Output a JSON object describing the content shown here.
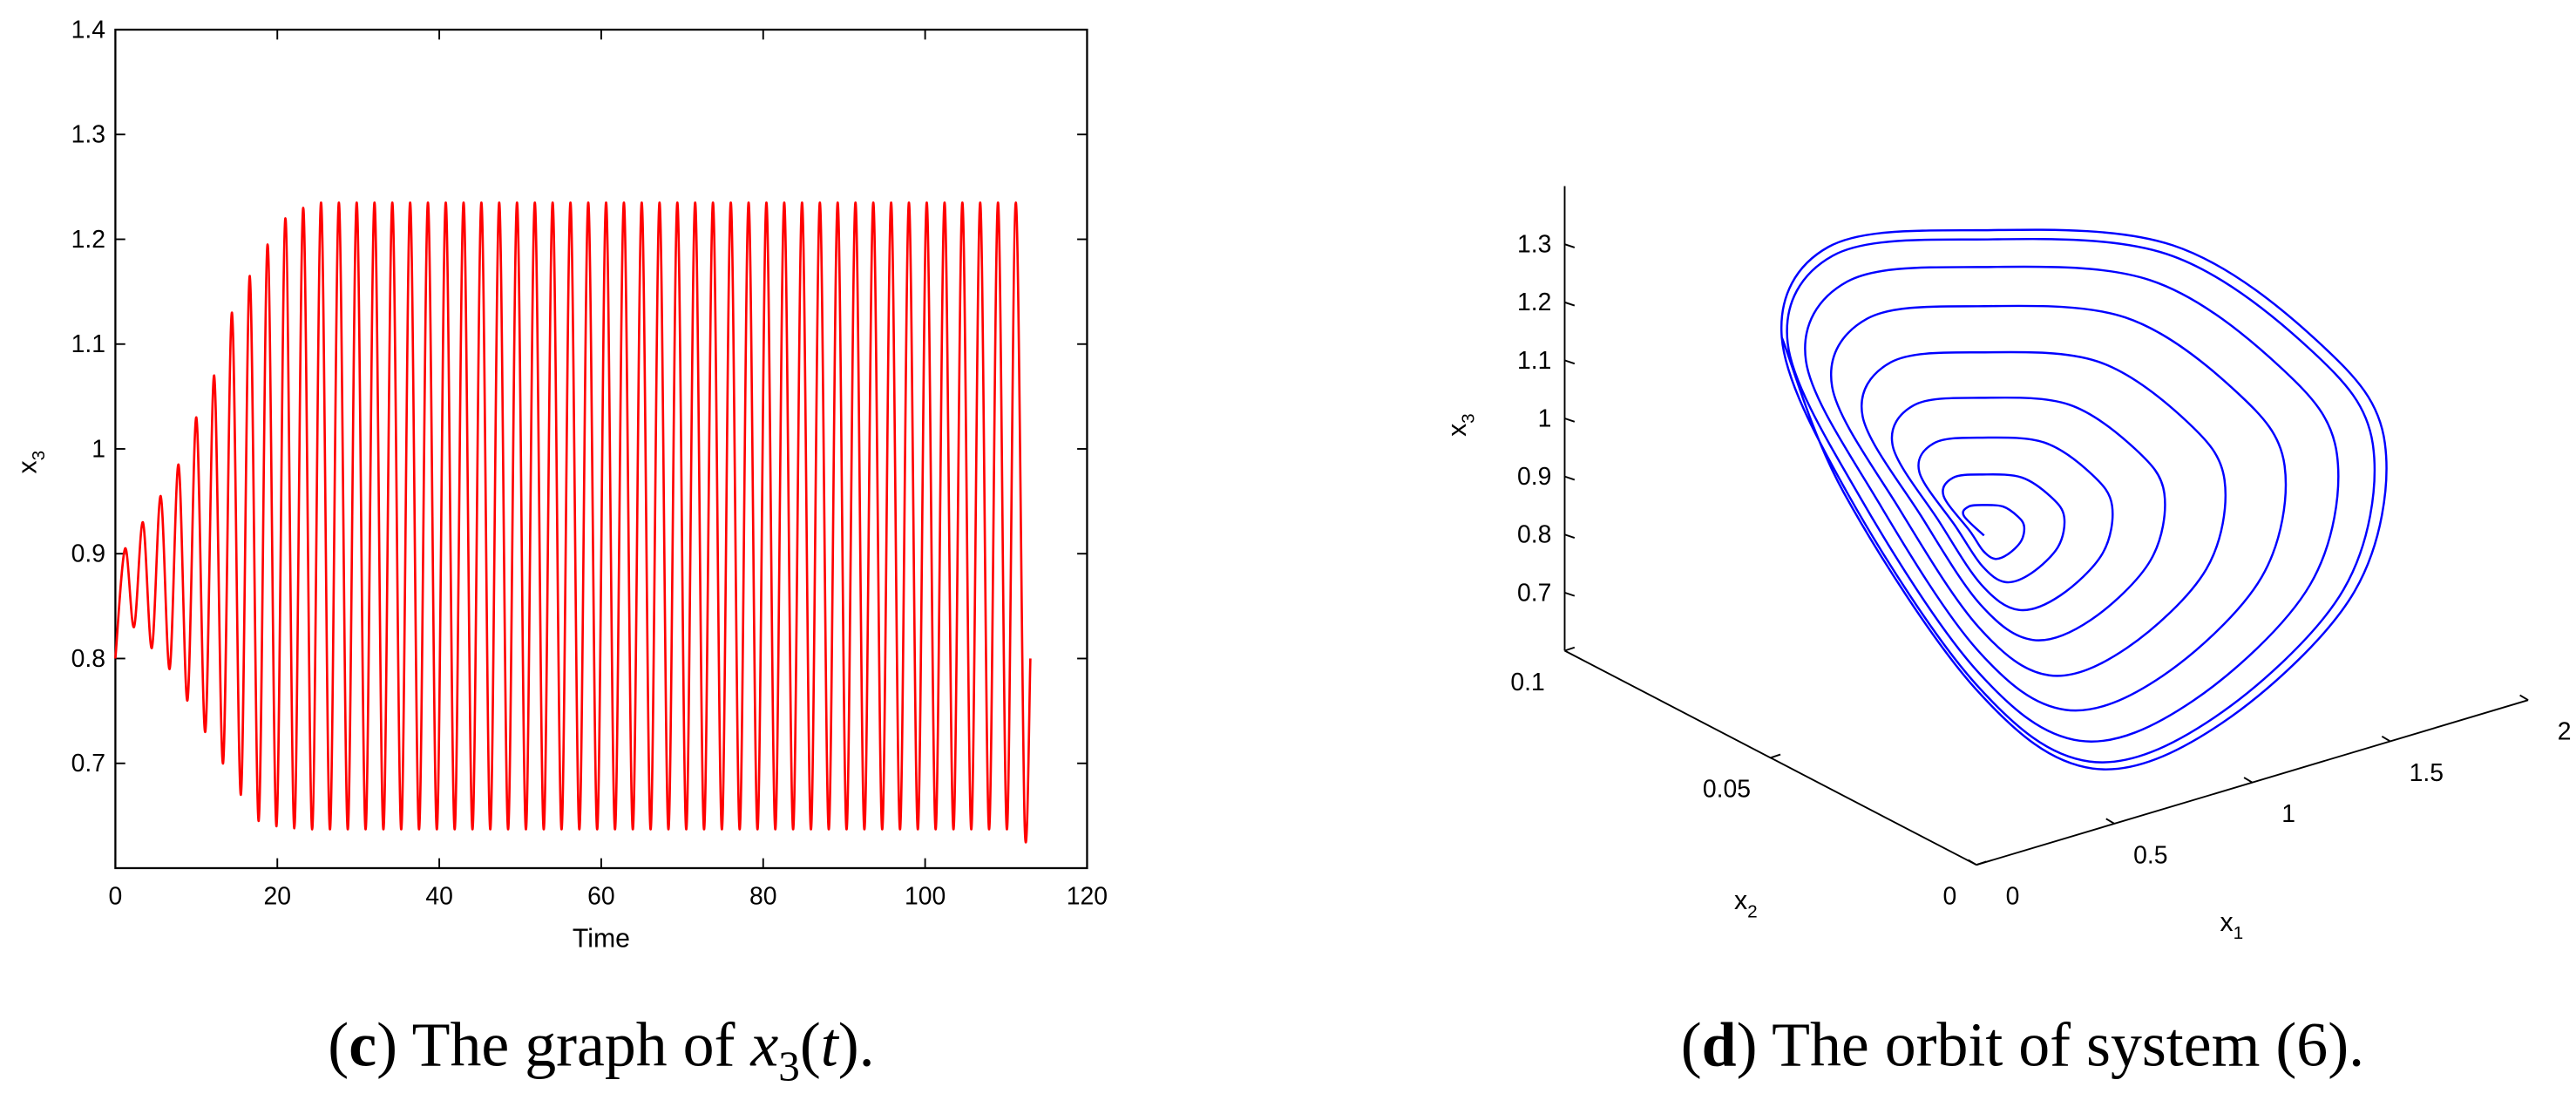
{
  "chart_data": [
    {
      "type": "line",
      "xlabel": "Time",
      "ylabel": [
        "x",
        "3"
      ],
      "caption": [
        {
          "text": "(",
          "style": "normal"
        },
        {
          "text": "c",
          "style": "bold"
        },
        {
          "text": ") The graph of ",
          "style": "normal"
        },
        {
          "text": "x",
          "style": "italic"
        },
        {
          "text": "3",
          "style": "sub"
        },
        {
          "text": "(",
          "style": "normal"
        },
        {
          "text": "t",
          "style": "italic"
        },
        {
          "text": ").",
          "style": "normal"
        }
      ],
      "xlim": [
        0,
        120
      ],
      "xticks": [
        0,
        20,
        40,
        60,
        80,
        100,
        120
      ],
      "ylim": [
        0.6,
        1.4
      ],
      "yticks": [
        0.7,
        0.8,
        0.9,
        1,
        1.1,
        1.2,
        1.3,
        1.4
      ],
      "grid": false,
      "series": [
        {
          "color": "#ff0000",
          "x": [
            0,
            1.2,
            2.3,
            3.4,
            4.5,
            5.6,
            6.7,
            7.8,
            8.9,
            10,
            11.1,
            12.2,
            13.3,
            14.4,
            15.5,
            16.6,
            17.7,
            18.8,
            19.9,
            21,
            22.1,
            23.2,
            24.3,
            25.4,
            26.5,
            27.6,
            28.7,
            29.8,
            30.9,
            32,
            33.1,
            34.2,
            35.3,
            36.4,
            37.5,
            38.6,
            39.7,
            40.8,
            41.9,
            43,
            44.1,
            45.2,
            46.3,
            47.4,
            48.5,
            49.6,
            50.7,
            51.8,
            52.9,
            54,
            55.1,
            56.2,
            57.3,
            58.4,
            59.5,
            60.6,
            61.7,
            62.8,
            63.9,
            65,
            66.1,
            67.2,
            68.3,
            69.4,
            70.5,
            71.6,
            72.7,
            73.8,
            74.9,
            76,
            77.1,
            78.2,
            79.3,
            80.4,
            81.5,
            82.6,
            83.7,
            84.8,
            85.9,
            87,
            88.1,
            89.2,
            90.3,
            91.4,
            92.5,
            93.6,
            94.7,
            95.8,
            96.9,
            98,
            99.1,
            100.2,
            101.3,
            102.4,
            103.5,
            104.6,
            105.7,
            106.8,
            107.9,
            109,
            110.1,
            111.2,
            112.3,
            113
          ],
          "values": [
            0.8,
            0.905,
            0.83,
            0.93,
            0.81,
            0.955,
            0.79,
            0.985,
            0.76,
            1.03,
            0.73,
            1.07,
            0.7,
            1.13,
            0.67,
            1.165,
            0.645,
            1.195,
            0.64,
            1.22,
            0.638,
            1.23,
            0.637,
            1.235,
            0.637,
            1.235,
            0.637,
            1.235,
            0.637,
            1.235,
            0.637,
            1.235,
            0.637,
            1.235,
            0.637,
            1.235,
            0.637,
            1.235,
            0.637,
            1.235,
            0.637,
            1.235,
            0.637,
            1.235,
            0.637,
            1.235,
            0.637,
            1.235,
            0.637,
            1.235,
            0.637,
            1.235,
            0.637,
            1.235,
            0.637,
            1.235,
            0.637,
            1.235,
            0.637,
            1.235,
            0.637,
            1.235,
            0.637,
            1.235,
            0.637,
            1.235,
            0.637,
            1.235,
            0.637,
            1.235,
            0.637,
            1.235,
            0.637,
            1.235,
            0.637,
            1.235,
            0.637,
            1.235,
            0.637,
            1.235,
            0.637,
            1.235,
            0.637,
            1.235,
            0.637,
            1.235,
            0.637,
            1.235,
            0.637,
            1.235,
            0.637,
            1.235,
            0.637,
            1.235,
            0.637,
            1.235,
            0.637,
            1.235,
            0.637,
            1.235,
            0.637,
            1.235,
            0.64,
            0.8
          ]
        }
      ]
    },
    {
      "type": "line3d",
      "xlabel": [
        "x",
        "1"
      ],
      "ylabel": [
        "x",
        "2"
      ],
      "zlabel": [
        "x",
        "3"
      ],
      "caption": [
        {
          "text": "(",
          "style": "normal"
        },
        {
          "text": "d",
          "style": "bold"
        },
        {
          "text": ") The orbit of system (6).",
          "style": "normal"
        }
      ],
      "xlim": [
        0,
        2
      ],
      "xticks": [
        0,
        0.5,
        1,
        1.5,
        2
      ],
      "ylim": [
        0,
        0.1
      ],
      "yticks": [
        0,
        0.05,
        0.1
      ],
      "zlim": [
        0.6,
        1.4
      ],
      "zticks": [
        0.7,
        0.8,
        0.9,
        1,
        1.1,
        1.2,
        1.3
      ],
      "series": [
        {
          "color": "#0000ff",
          "x": [
            0.55,
            0.514,
            0.516,
            0.547,
            0.596,
            0.635,
            0.655,
            0.644,
            0.599,
            0.567,
            0.547,
            0.529,
            0.478,
            0.482,
            0.544,
            0.642,
            0.72,
            0.76,
            0.738,
            0.648,
            0.584,
            0.544,
            0.508,
            0.435,
            0.441,
            0.54,
            0.697,
            0.822,
            0.886,
            0.851,
            0.707,
            0.604,
            0.54,
            0.483,
            0.388,
            0.397,
            0.537,
            0.757,
            0.933,
            1.023,
            0.973,
            0.771,
            0.627,
            0.537,
            0.456,
            0.334,
            0.346,
            0.532,
            0.826,
            1.06,
            1.18,
            1.114,
            0.844,
            0.652,
            0.532,
            0.424,
            0.28,
            0.295,
            0.528,
            0.895,
            1.188,
            1.338,
            1.255,
            0.918,
            0.678,
            0.528,
            0.393,
            0.233,
            0.251,
            0.524,
            0.955,
            1.298,
            1.474,
            1.377,
            0.981,
            0.7,
            0.524,
            0.365,
            0.201,
            0.22,
            0.521,
            0.996,
            1.375,
            1.569,
            1.462,
            1.025,
            0.715,
            0.521,
            0.346,
            0.19,
            0.21,
            0.52,
            1.01,
            1.4,
            1.6,
            1.49,
            1.04,
            0.72,
            0.52,
            0.34,
            0.19
          ],
          "y": [
            0.035,
            0.0375,
            0.0365,
            0.035,
            0.0335,
            0.0325,
            0.0323,
            0.0323,
            0.0325,
            0.0335,
            0.035,
            0.037,
            0.04,
            0.038,
            0.035,
            0.032,
            0.03,
            0.0296,
            0.0296,
            0.03,
            0.032,
            0.035,
            0.039,
            0.043,
            0.0398,
            0.035,
            0.0302,
            0.027,
            0.0264,
            0.0264,
            0.027,
            0.0302,
            0.035,
            0.0414,
            0.0463,
            0.0418,
            0.035,
            0.0283,
            0.0238,
            0.0229,
            0.0229,
            0.0238,
            0.0283,
            0.035,
            0.044,
            0.05,
            0.044,
            0.035,
            0.026,
            0.02,
            0.0188,
            0.0188,
            0.02,
            0.026,
            0.035,
            0.047,
            0.0538,
            0.0463,
            0.035,
            0.0238,
            0.0163,
            0.0148,
            0.0148,
            0.0163,
            0.0238,
            0.035,
            0.05,
            0.057,
            0.0482,
            0.035,
            0.0218,
            0.013,
            0.0112,
            0.0112,
            0.013,
            0.0218,
            0.035,
            0.0526,
            0.0593,
            0.0496,
            0.035,
            0.0205,
            0.0108,
            0.0088,
            0.0088,
            0.0108,
            0.0205,
            0.035,
            0.0544,
            0.06,
            0.05,
            0.035,
            0.02,
            0.01,
            0.008,
            0.008,
            0.01,
            0.02,
            0.035,
            0.055,
            0.06
          ],
          "z": [
            0.96,
            0.99,
            1.009,
            1.013,
            1.009,
            0.99,
            0.971,
            0.947,
            0.93,
            0.923,
            0.934,
            0.963,
            1.02,
            1.058,
            1.066,
            1.058,
            1.02,
            0.982,
            0.934,
            0.9,
            0.886,
            0.908,
            0.966,
            1.056,
            1.117,
            1.13,
            1.117,
            1.056,
            0.995,
            0.918,
            0.864,
            0.842,
            0.877,
            0.97,
            1.095,
            1.181,
            1.199,
            1.181,
            1.095,
            1.01,
            0.902,
            0.825,
            0.794,
            0.843,
            0.974,
            1.14,
            1.254,
            1.278,
            1.254,
            1.14,
            1.026,
            0.882,
            0.78,
            0.738,
            0.804,
            0.978,
            1.185,
            1.328,
            1.358,
            1.328,
            1.185,
            1.043,
            0.863,
            0.735,
            0.683,
            0.765,
            0.983,
            1.224,
            1.391,
            1.426,
            1.391,
            1.224,
            1.057,
            0.846,
            0.696,
            0.634,
            0.731,
            0.986,
            1.251,
            1.435,
            1.474,
            1.435,
            1.251,
            1.067,
            0.834,
            0.669,
            0.601,
            0.708,
            0.989,
            1.26,
            1.45,
            1.49,
            1.45,
            1.26,
            1.07,
            0.83,
            0.66,
            0.59,
            0.7,
            0.99,
            1.26
          ]
        }
      ]
    }
  ]
}
